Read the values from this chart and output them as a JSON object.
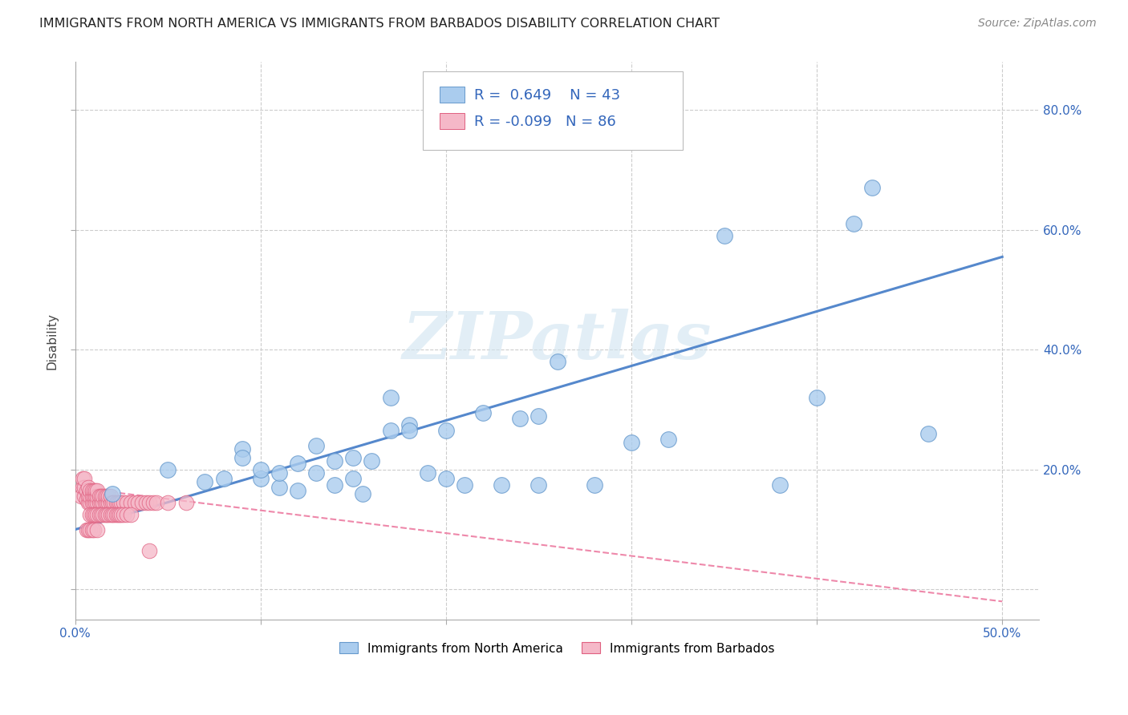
{
  "title": "IMMIGRANTS FROM NORTH AMERICA VS IMMIGRANTS FROM BARBADOS DISABILITY CORRELATION CHART",
  "source": "Source: ZipAtlas.com",
  "ylabel": "Disability",
  "xlim": [
    0.0,
    0.52
  ],
  "ylim": [
    -0.05,
    0.88
  ],
  "x_tick_positions": [
    0.0,
    0.1,
    0.2,
    0.3,
    0.4,
    0.5
  ],
  "x_tick_labels": [
    "0.0%",
    "",
    "",
    "",
    "",
    "50.0%"
  ],
  "y_tick_positions": [
    0.0,
    0.2,
    0.4,
    0.6,
    0.8
  ],
  "y_tick_labels": [
    "",
    "20.0%",
    "40.0%",
    "60.0%",
    "80.0%"
  ],
  "blue_color": "#aaccee",
  "blue_edge_color": "#6699cc",
  "pink_color": "#f5b8c8",
  "pink_edge_color": "#e06080",
  "blue_line_color": "#5588cc",
  "pink_line_color": "#ee88aa",
  "watermark_color": "#d0e4f0",
  "watermark_text": "ZIPatlas",
  "legend_R_blue": "R =  0.649",
  "legend_N_blue": "N = 43",
  "legend_R_pink": "R = -0.099",
  "legend_N_pink": "N = 86",
  "legend_label_blue": "Immigrants from North America",
  "legend_label_pink": "Immigrants from Barbados",
  "blue_scatter_x": [
    0.02,
    0.05,
    0.07,
    0.08,
    0.09,
    0.09,
    0.1,
    0.1,
    0.11,
    0.11,
    0.12,
    0.12,
    0.13,
    0.13,
    0.14,
    0.14,
    0.15,
    0.15,
    0.155,
    0.16,
    0.17,
    0.17,
    0.18,
    0.18,
    0.19,
    0.2,
    0.2,
    0.21,
    0.22,
    0.23,
    0.24,
    0.25,
    0.25,
    0.26,
    0.28,
    0.3,
    0.32,
    0.35,
    0.38,
    0.4,
    0.42,
    0.43,
    0.46
  ],
  "blue_scatter_y": [
    0.16,
    0.2,
    0.18,
    0.185,
    0.235,
    0.22,
    0.185,
    0.2,
    0.17,
    0.195,
    0.165,
    0.21,
    0.195,
    0.24,
    0.175,
    0.215,
    0.185,
    0.22,
    0.16,
    0.215,
    0.32,
    0.265,
    0.275,
    0.265,
    0.195,
    0.265,
    0.185,
    0.175,
    0.295,
    0.175,
    0.285,
    0.175,
    0.29,
    0.38,
    0.175,
    0.245,
    0.25,
    0.59,
    0.175,
    0.32,
    0.61,
    0.67,
    0.26
  ],
  "pink_scatter_x": [
    0.003,
    0.004,
    0.004,
    0.005,
    0.005,
    0.005,
    0.006,
    0.006,
    0.007,
    0.007,
    0.007,
    0.008,
    0.008,
    0.008,
    0.009,
    0.009,
    0.009,
    0.01,
    0.01,
    0.01,
    0.011,
    0.011,
    0.011,
    0.012,
    0.012,
    0.012,
    0.013,
    0.013,
    0.014,
    0.014,
    0.015,
    0.015,
    0.016,
    0.016,
    0.017,
    0.017,
    0.018,
    0.018,
    0.019,
    0.019,
    0.02,
    0.021,
    0.022,
    0.023,
    0.024,
    0.025,
    0.026,
    0.028,
    0.03,
    0.032,
    0.034,
    0.036,
    0.038,
    0.04,
    0.042,
    0.044,
    0.05,
    0.06,
    0.008,
    0.009,
    0.01,
    0.011,
    0.012,
    0.013,
    0.014,
    0.015,
    0.016,
    0.017,
    0.018,
    0.019,
    0.02,
    0.021,
    0.022,
    0.023,
    0.024,
    0.025,
    0.026,
    0.028,
    0.03,
    0.006,
    0.007,
    0.008,
    0.009,
    0.01,
    0.012,
    0.04
  ],
  "pink_scatter_y": [
    0.155,
    0.17,
    0.185,
    0.155,
    0.17,
    0.185,
    0.15,
    0.165,
    0.145,
    0.155,
    0.17,
    0.145,
    0.155,
    0.165,
    0.145,
    0.155,
    0.165,
    0.145,
    0.155,
    0.165,
    0.145,
    0.155,
    0.165,
    0.145,
    0.155,
    0.165,
    0.145,
    0.155,
    0.145,
    0.155,
    0.145,
    0.155,
    0.145,
    0.155,
    0.145,
    0.155,
    0.145,
    0.155,
    0.145,
    0.155,
    0.145,
    0.145,
    0.145,
    0.145,
    0.145,
    0.145,
    0.145,
    0.145,
    0.145,
    0.145,
    0.145,
    0.145,
    0.145,
    0.145,
    0.145,
    0.145,
    0.145,
    0.145,
    0.125,
    0.125,
    0.125,
    0.125,
    0.125,
    0.125,
    0.125,
    0.125,
    0.125,
    0.125,
    0.125,
    0.125,
    0.125,
    0.125,
    0.125,
    0.125,
    0.125,
    0.125,
    0.125,
    0.125,
    0.125,
    0.1,
    0.1,
    0.1,
    0.1,
    0.1,
    0.1,
    0.065
  ],
  "blue_trendline_x": [
    0.0,
    0.5
  ],
  "blue_trendline_y": [
    0.1,
    0.555
  ],
  "pink_trendline_x": [
    0.0,
    0.5
  ],
  "pink_trendline_y": [
    0.17,
    -0.02
  ]
}
